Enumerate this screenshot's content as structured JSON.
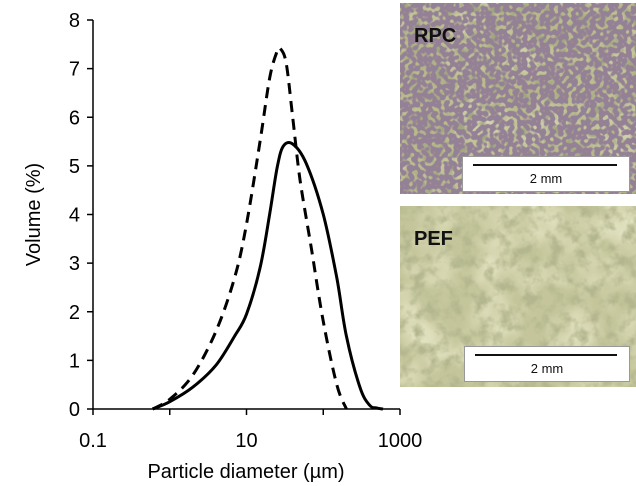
{
  "chart_data": {
    "type": "line",
    "xlabel": "Particle diameter (µm)",
    "ylabel": "Volume (%)",
    "xscale": "log",
    "xlim": [
      0.1,
      1000
    ],
    "ylim": [
      0,
      8
    ],
    "xticks": [
      0.1,
      10,
      1000
    ],
    "xtick_labels": [
      "0.1",
      "10",
      "1000"
    ],
    "yticks": [
      0,
      1,
      2,
      3,
      4,
      5,
      6,
      7,
      8
    ],
    "ytick_labels": [
      "0",
      "1",
      "2",
      "3",
      "4",
      "5",
      "6",
      "7",
      "8"
    ],
    "grid": false,
    "legend": "none",
    "series": [
      {
        "style": "solid",
        "color": "#000000",
        "x": [
          0.6,
          1,
          2,
          4,
          7,
          10,
          15,
          20,
          25,
          30,
          40,
          60,
          100,
          150,
          200,
          300,
          400,
          500,
          600
        ],
        "y": [
          0,
          0.15,
          0.45,
          0.9,
          1.5,
          1.95,
          2.9,
          4.0,
          4.95,
          5.4,
          5.45,
          5.05,
          4.0,
          2.7,
          1.5,
          0.45,
          0.08,
          0.02,
          0
        ]
      },
      {
        "style": "dashed",
        "color": "#000000",
        "x": [
          0.6,
          1,
          2,
          4,
          7,
          10,
          15,
          20,
          25,
          28,
          33,
          40,
          50,
          70,
          100,
          150,
          200
        ],
        "y": [
          0,
          0.2,
          0.7,
          1.6,
          2.7,
          3.8,
          5.5,
          6.8,
          7.35,
          7.4,
          7.1,
          6.0,
          4.7,
          3.3,
          1.8,
          0.5,
          0
        ]
      }
    ]
  },
  "micrographs": [
    {
      "label": "RPC",
      "scale": "2 mm"
    },
    {
      "label": "PEF",
      "scale": "2 mm"
    }
  ]
}
